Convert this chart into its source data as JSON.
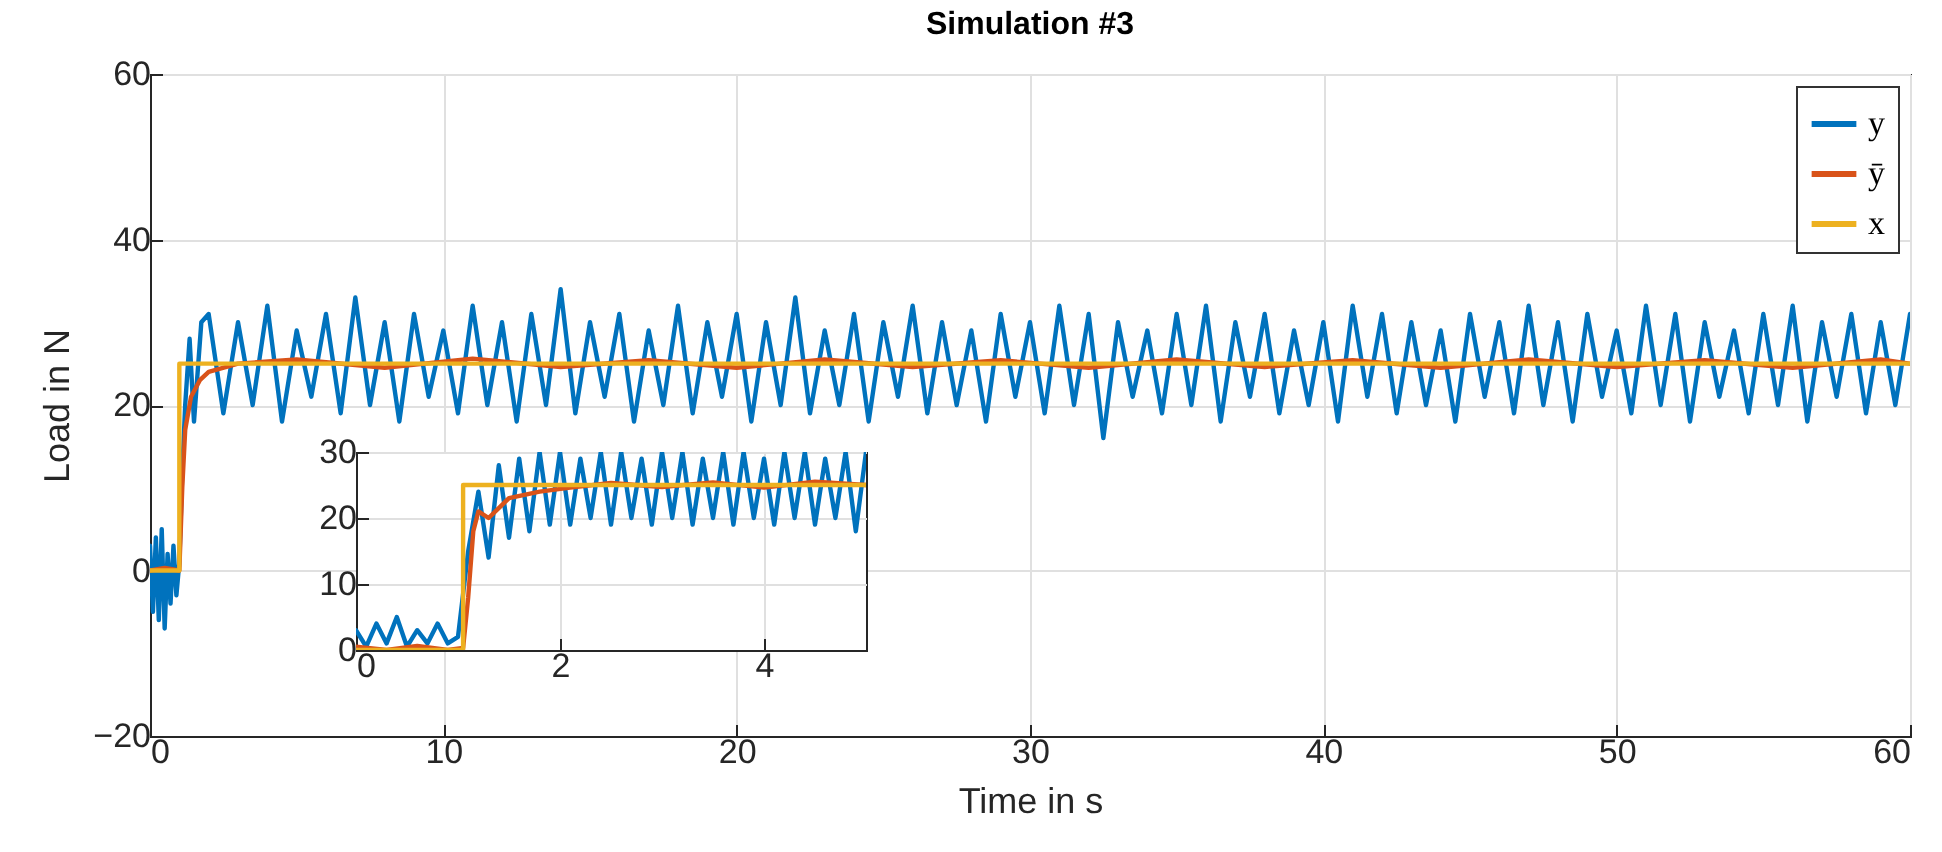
{
  "chart_data": [
    {
      "type": "line",
      "title": "Simulation #3",
      "xlabel": "Time in s",
      "ylabel": "Load in N",
      "xlim": [
        0,
        60
      ],
      "xticks": [
        0,
        10,
        20,
        30,
        40,
        50,
        60
      ],
      "ylim": [
        -20,
        60
      ],
      "yticks": [
        -20,
        0,
        20,
        40,
        60
      ],
      "grid": true,
      "legend": "top right",
      "series": [
        {
          "name": "y",
          "color": "#0072bd",
          "x": [
            0,
            0.1,
            0.2,
            0.3,
            0.4,
            0.5,
            0.6,
            0.7,
            0.8,
            0.9,
            1.0,
            1.1,
            1.2,
            1.35,
            1.5,
            1.75,
            2,
            2.5,
            3,
            3.5,
            4,
            4.5,
            5,
            5.5,
            6,
            6.5,
            7,
            7.5,
            8,
            8.5,
            9,
            9.5,
            10,
            10.5,
            11,
            11.5,
            12,
            12.5,
            13,
            13.5,
            14,
            14.5,
            15,
            15.5,
            16,
            16.5,
            17,
            17.5,
            18,
            18.5,
            19,
            19.5,
            20,
            20.5,
            21,
            21.5,
            22,
            22.5,
            23,
            23.5,
            24,
            24.5,
            25,
            25.5,
            26,
            26.5,
            27,
            27.5,
            28,
            28.5,
            29,
            29.5,
            30,
            30.5,
            31,
            31.5,
            32,
            32.5,
            33,
            33.5,
            34,
            34.5,
            35,
            35.5,
            36,
            36.5,
            37,
            37.5,
            38,
            38.5,
            39,
            39.5,
            40,
            40.5,
            41,
            41.5,
            42,
            42.5,
            43,
            43.5,
            44,
            44.5,
            45,
            45.5,
            46,
            46.5,
            47,
            47.5,
            48,
            48.5,
            49,
            49.5,
            50,
            50.5,
            51,
            51.5,
            52,
            52.5,
            53,
            53.5,
            54,
            54.5,
            55,
            55.5,
            56,
            56.5,
            57,
            57.5,
            58,
            58.5,
            59,
            59.5,
            60
          ],
          "values": [
            3,
            -5,
            4,
            -6,
            5,
            -7,
            2,
            -4,
            3,
            -3,
            1,
            12,
            20,
            28,
            18,
            30,
            31,
            19,
            30,
            20,
            32,
            18,
            29,
            21,
            31,
            19,
            33,
            20,
            30,
            18,
            31,
            21,
            29,
            19,
            32,
            20,
            30,
            18,
            31,
            20,
            34,
            19,
            30,
            21,
            31,
            18,
            29,
            20,
            32,
            19,
            30,
            21,
            31,
            18,
            30,
            20,
            33,
            19,
            29,
            20,
            31,
            18,
            30,
            21,
            32,
            19,
            30,
            20,
            29,
            18,
            31,
            21,
            30,
            19,
            32,
            20,
            31,
            16,
            30,
            21,
            29,
            19,
            31,
            20,
            32,
            18,
            30,
            21,
            31,
            19,
            29,
            20,
            30,
            18,
            32,
            21,
            31,
            19,
            30,
            20,
            29,
            18,
            31,
            21,
            30,
            19,
            32,
            20,
            30,
            18,
            31,
            21,
            29,
            19,
            32,
            20,
            31,
            18,
            30,
            21,
            29,
            19,
            31,
            20,
            32,
            18,
            30,
            21,
            31,
            19,
            30,
            20,
            31
          ]
        },
        {
          "name": "ȳ",
          "color": "#d95319",
          "x": [
            0,
            0.5,
            1.0,
            1.1,
            1.2,
            1.4,
            1.7,
            2,
            3,
            5,
            8,
            11,
            14,
            17,
            20,
            23,
            26,
            29,
            32,
            35,
            38,
            41,
            44,
            47,
            50,
            53,
            56,
            59,
            60
          ],
          "values": [
            0,
            0.3,
            0,
            10,
            17,
            21,
            23,
            24,
            25,
            25.5,
            24.5,
            25.6,
            24.6,
            25.4,
            24.5,
            25.5,
            24.6,
            25.4,
            24.5,
            25.5,
            24.6,
            25.4,
            24.5,
            25.5,
            24.6,
            25.4,
            24.5,
            25.5,
            25
          ]
        },
        {
          "name": "x",
          "color": "#edb120",
          "x": [
            0,
            1,
            1,
            60
          ],
          "values": [
            0,
            0,
            25,
            25
          ]
        }
      ]
    },
    {
      "type": "line",
      "xlim": [
        0,
        5
      ],
      "xticks": [
        0,
        2,
        4
      ],
      "ylim": [
        0,
        30
      ],
      "yticks": [
        0,
        10,
        20,
        30
      ],
      "grid": true,
      "series": [
        {
          "color": "#0072bd",
          "x": [
            0,
            0.1,
            0.2,
            0.3,
            0.4,
            0.5,
            0.6,
            0.7,
            0.8,
            0.9,
            1.0,
            1.1,
            1.2,
            1.3,
            1.4,
            1.5,
            1.6,
            1.7,
            1.8,
            1.9,
            2.0,
            2.1,
            2.2,
            2.3,
            2.4,
            2.5,
            2.6,
            2.7,
            2.8,
            2.9,
            3.0,
            3.1,
            3.2,
            3.3,
            3.4,
            3.5,
            3.6,
            3.7,
            3.8,
            3.9,
            4.0,
            4.1,
            4.2,
            4.3,
            4.4,
            4.5,
            4.6,
            4.7,
            4.8,
            4.9,
            5.0
          ],
          "values": [
            3,
            0.5,
            4,
            1,
            5,
            0.5,
            3,
            1,
            4,
            1,
            2,
            15,
            24,
            14,
            28,
            17,
            29,
            18,
            30,
            19,
            30,
            19,
            29,
            20,
            30,
            19,
            30,
            20,
            29,
            19,
            30,
            20,
            30,
            19,
            29,
            20,
            30,
            19,
            30,
            20,
            29,
            19,
            30,
            20,
            30,
            19,
            29,
            20,
            30,
            18,
            30
          ]
        },
        {
          "color": "#d95319",
          "x": [
            0,
            0.3,
            0.6,
            0.9,
            1.05,
            1.1,
            1.15,
            1.2,
            1.3,
            1.5,
            1.8,
            2.1,
            2.5,
            3,
            3.5,
            4,
            4.5,
            5
          ],
          "values": [
            0.5,
            0,
            0.6,
            0,
            0.3,
            8,
            18,
            21,
            20,
            23,
            24,
            24.6,
            25.3,
            24.7,
            25.4,
            24.6,
            25.5,
            25
          ]
        },
        {
          "color": "#edb120",
          "x": [
            0,
            1.05,
            1.05,
            5
          ],
          "values": [
            0,
            0,
            25,
            25
          ]
        }
      ]
    }
  ]
}
